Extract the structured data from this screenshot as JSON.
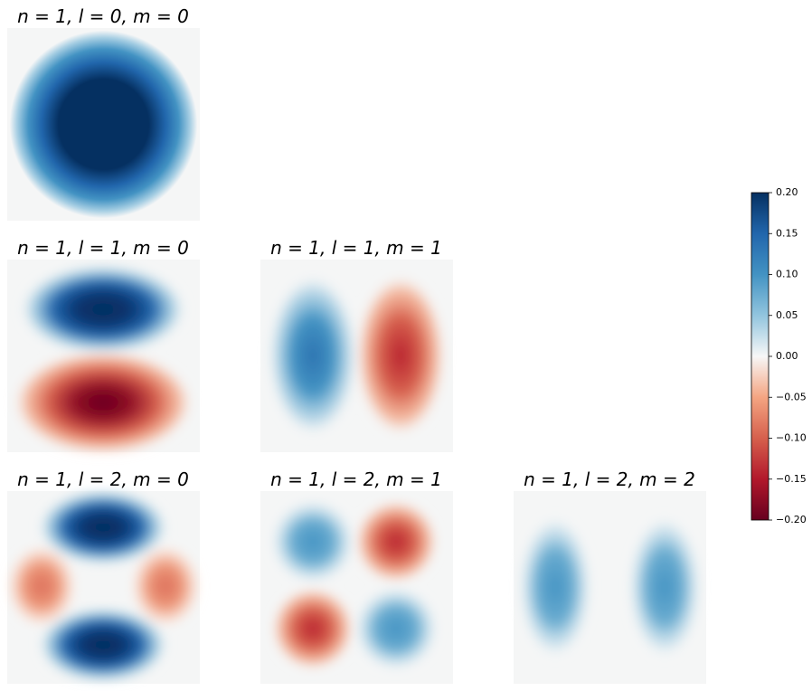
{
  "chart_data": {
    "type": "heatmap",
    "panels": [
      {
        "title": "n = 1, l = 0, m = 0"
      },
      {
        "title": "n = 1, l = 1, m = 0"
      },
      {
        "title": "n = 1, l = 1, m = 1"
      },
      {
        "title": "n = 1, l = 2, m = 0"
      },
      {
        "title": "n = 1, l = 2, m = 1"
      },
      {
        "title": "n = 1, l = 2, m = 2"
      }
    ],
    "colorbar": {
      "colormap": "RdBu",
      "clim": [
        -0.2,
        0.2
      ],
      "ticks": [
        {
          "value": 0.2,
          "label": "0.20"
        },
        {
          "value": 0.15,
          "label": "0.15"
        },
        {
          "value": 0.1,
          "label": "0.10"
        },
        {
          "value": 0.05,
          "label": "0.05"
        },
        {
          "value": 0,
          "label": "0.00"
        },
        {
          "value": -0.05,
          "label": "−0.05"
        },
        {
          "value": -0.1,
          "label": "−0.10"
        },
        {
          "value": -0.15,
          "label": "−0.15"
        },
        {
          "value": -0.2,
          "label": "−0.20"
        }
      ]
    }
  }
}
